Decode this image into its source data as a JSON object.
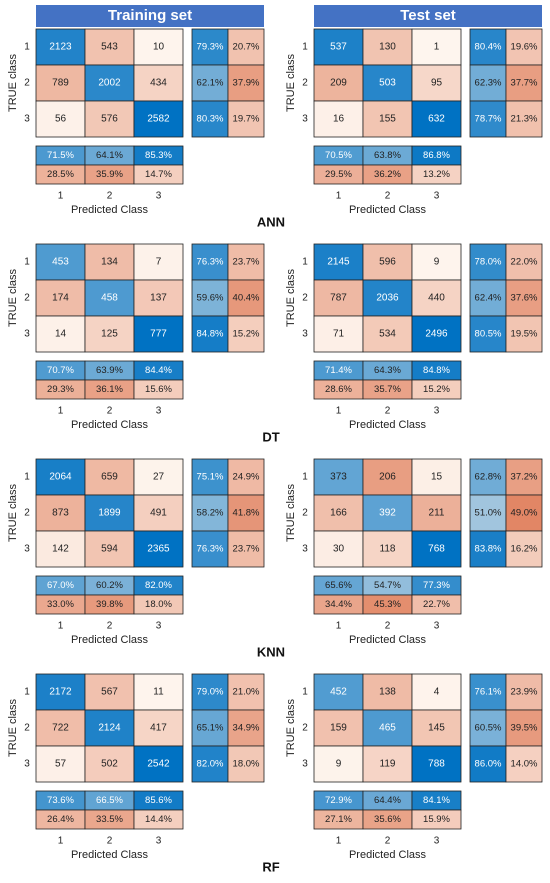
{
  "headers": {
    "train": "Training set",
    "test": "Test set"
  },
  "axis": {
    "ylabel": "TRUE class",
    "xlabel": "Predicted Class",
    "classes": [
      "1",
      "2",
      "3"
    ]
  },
  "chart_data": [
    {
      "type": "heatmap",
      "model": "ANN",
      "train": {
        "matrix": [
          [
            2123,
            543,
            10
          ],
          [
            789,
            2002,
            434
          ],
          [
            56,
            576,
            2582
          ]
        ],
        "row_pct": [
          [
            "79.3%",
            "20.7%"
          ],
          [
            "62.1%",
            "37.9%"
          ],
          [
            "80.3%",
            "19.7%"
          ]
        ],
        "col_pct": [
          [
            "71.5%",
            "64.1%",
            "85.3%"
          ],
          [
            "28.5%",
            "35.9%",
            "14.7%"
          ]
        ]
      },
      "test": {
        "matrix": [
          [
            537,
            130,
            1
          ],
          [
            209,
            503,
            95
          ],
          [
            16,
            155,
            632
          ]
        ],
        "row_pct": [
          [
            "80.4%",
            "19.6%"
          ],
          [
            "62.3%",
            "37.7%"
          ],
          [
            "78.7%",
            "21.3%"
          ]
        ],
        "col_pct": [
          [
            "70.5%",
            "63.8%",
            "86.8%"
          ],
          [
            "29.5%",
            "36.2%",
            "13.2%"
          ]
        ]
      }
    },
    {
      "type": "heatmap",
      "model": "DT",
      "train": {
        "matrix": [
          [
            453,
            134,
            7
          ],
          [
            174,
            458,
            137
          ],
          [
            14,
            125,
            777
          ]
        ],
        "row_pct": [
          [
            "76.3%",
            "23.7%"
          ],
          [
            "59.6%",
            "40.4%"
          ],
          [
            "84.8%",
            "15.2%"
          ]
        ],
        "col_pct": [
          [
            "70.7%",
            "63.9%",
            "84.4%"
          ],
          [
            "29.3%",
            "36.1%",
            "15.6%"
          ]
        ]
      },
      "test": {
        "matrix": [
          [
            2145,
            596,
            9
          ],
          [
            787,
            2036,
            440
          ],
          [
            71,
            534,
            2496
          ]
        ],
        "row_pct": [
          [
            "78.0%",
            "22.0%"
          ],
          [
            "62.4%",
            "37.6%"
          ],
          [
            "80.5%",
            "19.5%"
          ]
        ],
        "col_pct": [
          [
            "71.4%",
            "64.3%",
            "84.8%"
          ],
          [
            "28.6%",
            "35.7%",
            "15.2%"
          ]
        ]
      }
    },
    {
      "type": "heatmap",
      "model": "KNN",
      "train": {
        "matrix": [
          [
            2064,
            659,
            27
          ],
          [
            873,
            1899,
            491
          ],
          [
            142,
            594,
            2365
          ]
        ],
        "row_pct": [
          [
            "75.1%",
            "24.9%"
          ],
          [
            "58.2%",
            "41.8%"
          ],
          [
            "76.3%",
            "23.7%"
          ]
        ],
        "col_pct": [
          [
            "67.0%",
            "60.2%",
            "82.0%"
          ],
          [
            "33.0%",
            "39.8%",
            "18.0%"
          ]
        ]
      },
      "test": {
        "matrix": [
          [
            373,
            206,
            15
          ],
          [
            166,
            392,
            211
          ],
          [
            30,
            118,
            768
          ]
        ],
        "row_pct": [
          [
            "62.8%",
            "37.2%"
          ],
          [
            "51.0%",
            "49.0%"
          ],
          [
            "83.8%",
            "16.2%"
          ]
        ],
        "col_pct": [
          [
            "65.6%",
            "54.7%",
            "77.3%"
          ],
          [
            "34.4%",
            "45.3%",
            "22.7%"
          ]
        ]
      }
    },
    {
      "type": "heatmap",
      "model": "RF",
      "train": {
        "matrix": [
          [
            2172,
            567,
            11
          ],
          [
            722,
            2124,
            417
          ],
          [
            57,
            502,
            2542
          ]
        ],
        "row_pct": [
          [
            "79.0%",
            "21.0%"
          ],
          [
            "65.1%",
            "34.9%"
          ],
          [
            "82.0%",
            "18.0%"
          ]
        ],
        "col_pct": [
          [
            "73.6%",
            "66.5%",
            "85.6%"
          ],
          [
            "26.4%",
            "33.5%",
            "14.4%"
          ]
        ]
      },
      "test": {
        "matrix": [
          [
            452,
            138,
            4
          ],
          [
            159,
            465,
            145
          ],
          [
            9,
            119,
            788
          ]
        ],
        "row_pct": [
          [
            "76.1%",
            "23.9%"
          ],
          [
            "60.5%",
            "39.5%"
          ],
          [
            "86.0%",
            "14.0%"
          ]
        ],
        "col_pct": [
          [
            "72.9%",
            "64.4%",
            "84.1%"
          ],
          [
            "27.1%",
            "35.6%",
            "15.9%"
          ]
        ]
      }
    }
  ]
}
